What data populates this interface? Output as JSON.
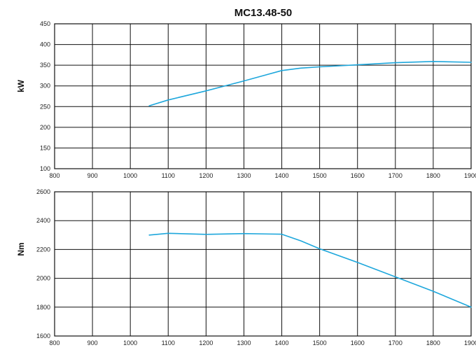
{
  "chart_data": [
    {
      "type": "line",
      "title": "MC13.48-50",
      "xlabel": "",
      "ylabel": "kW",
      "xlim": [
        800,
        1900
      ],
      "ylim": [
        100,
        450
      ],
      "xticks": [
        800,
        900,
        1000,
        1100,
        1200,
        1300,
        1400,
        1500,
        1600,
        1700,
        1800,
        1900
      ],
      "yticks": [
        100,
        150,
        200,
        250,
        300,
        350,
        400,
        450
      ],
      "grid": true,
      "color": "#1ea7dc",
      "series": [
        {
          "x": [
            1050,
            1100,
            1200,
            1300,
            1400,
            1450,
            1500,
            1600,
            1700,
            1800,
            1900
          ],
          "values": [
            252,
            266,
            288,
            312,
            337,
            343,
            346,
            351,
            356,
            359,
            357
          ]
        }
      ]
    },
    {
      "type": "line",
      "title": "",
      "xlabel": "",
      "ylabel": "Nm",
      "xlim": [
        800,
        1900
      ],
      "ylim": [
        1600,
        2600
      ],
      "xticks": [
        800,
        900,
        1000,
        1100,
        1200,
        1300,
        1400,
        1500,
        1600,
        1700,
        1800,
        1900
      ],
      "yticks": [
        1600,
        1800,
        2000,
        2200,
        2400,
        2600
      ],
      "grid": true,
      "color": "#1ea7dc",
      "series": [
        {
          "x": [
            1050,
            1100,
            1200,
            1300,
            1400,
            1450,
            1500,
            1600,
            1700,
            1800,
            1900
          ],
          "values": [
            2300,
            2312,
            2305,
            2310,
            2306,
            2260,
            2205,
            2110,
            2010,
            1910,
            1800
          ]
        }
      ]
    }
  ]
}
